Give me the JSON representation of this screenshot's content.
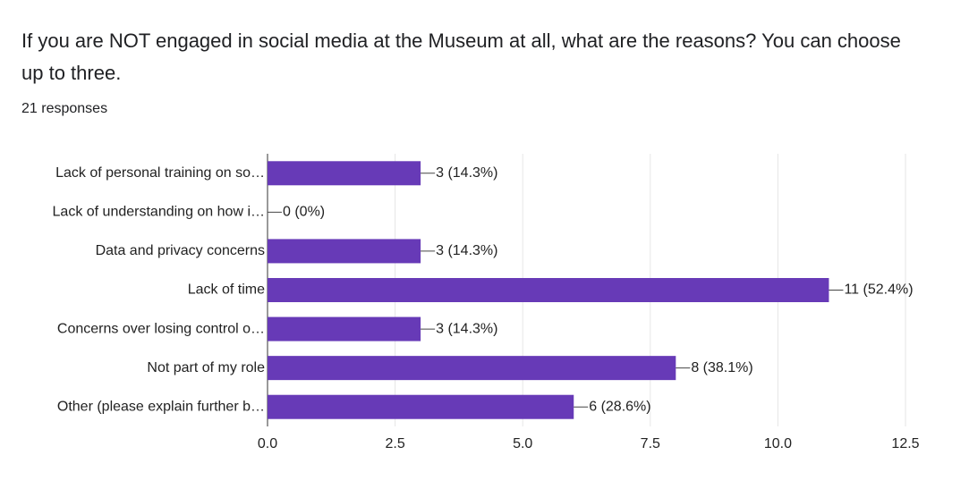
{
  "chart_data": {
    "type": "bar",
    "orientation": "horizontal",
    "title": "If you are NOT engaged in social media at the Museum at all, what are the reasons? You can choose up to three.",
    "subtitle": "21 responses",
    "categories": [
      "Lack of personal training on so…",
      "Lack of understanding on how i…",
      "Data and privacy concerns",
      "Lack of time",
      "Concerns over losing control o…",
      "Not part of my role",
      "Other (please explain further b…"
    ],
    "values": [
      3,
      0,
      3,
      11,
      3,
      8,
      6
    ],
    "value_labels": [
      "3 (14.3%)",
      "0 (0%)",
      "3 (14.3%)",
      "11 (52.4%)",
      "3 (14.3%)",
      "8 (38.1%)",
      "6 (28.6%)"
    ],
    "color": "#673ab7",
    "xlim": [
      0,
      12.5
    ],
    "xticks": [
      {
        "value": 0,
        "label": "0.0"
      },
      2.5,
      {
        "value": 5,
        "label": "5.0"
      },
      7.5,
      {
        "value": 10,
        "label": "10.0"
      },
      12.5
    ],
    "grid": true
  }
}
